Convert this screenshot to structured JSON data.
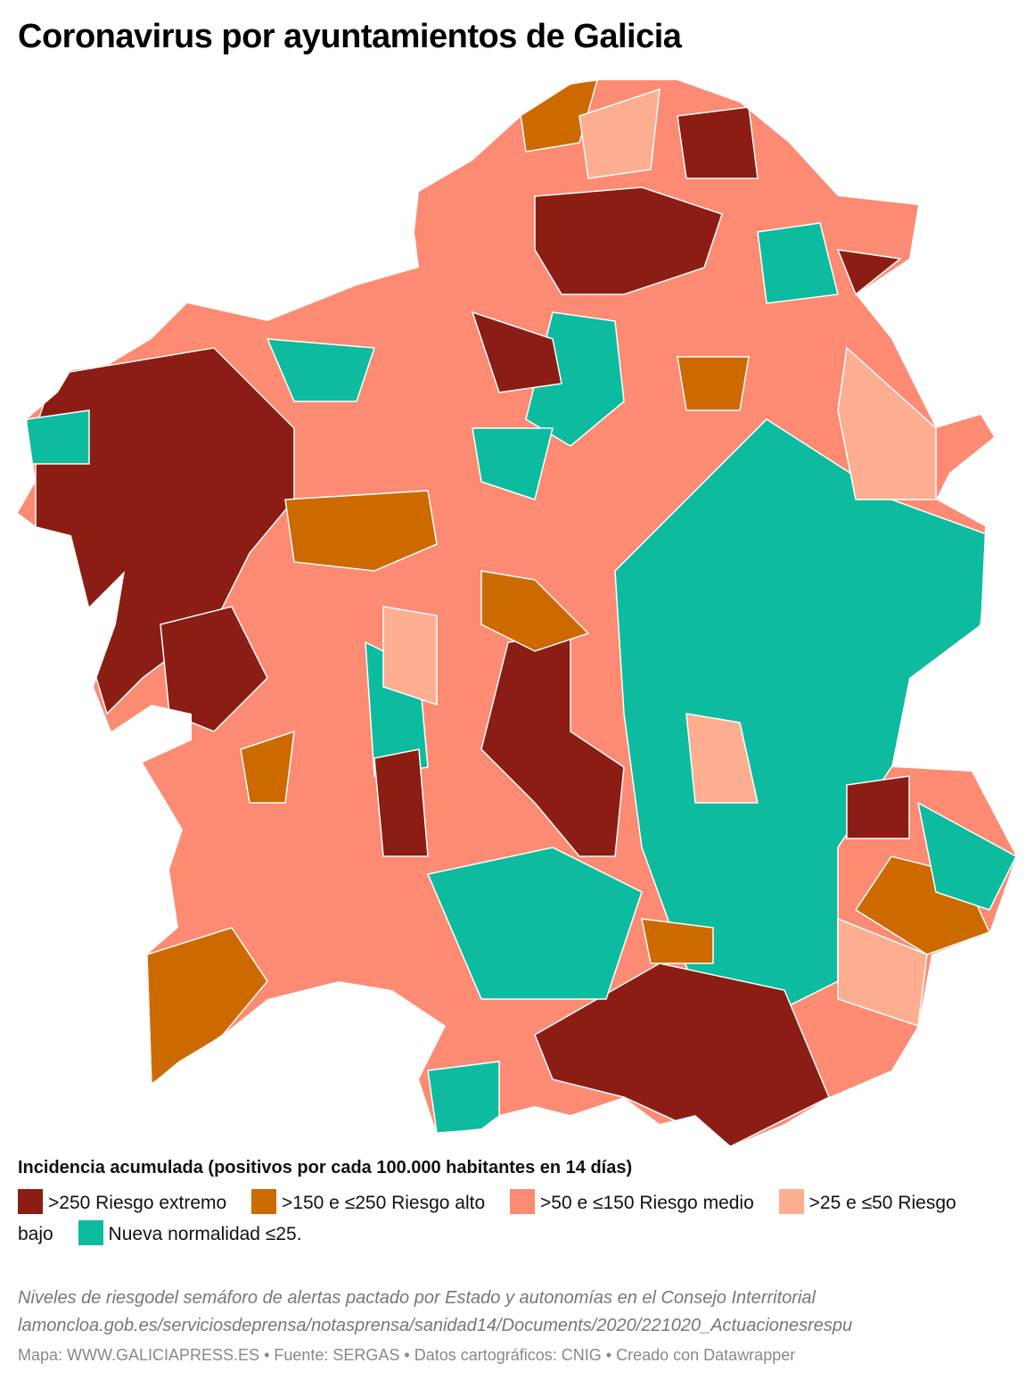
{
  "title": "Coronavirus por ayuntamientos de Galicia",
  "legend": {
    "title": "Incidencia acumulada (positivos por cada 100.000 habitantes en 14 días)",
    "items": [
      {
        "label": ">250 Riesgo extremo",
        "color": "#8b1d14"
      },
      {
        "label": ">150 e ≤250 Riesgo alto",
        "color": "#cc6a00"
      },
      {
        "label": ">50 e ≤150 Riesgo medio",
        "color": "#fd8a72"
      },
      {
        "label": ">25 e ≤50 Riesgo bajo",
        "color": "#fdae91"
      },
      {
        "label": "Nueva normalidad ≤25.",
        "color": "#0dbb9f"
      }
    ]
  },
  "notes": [
    "Niveles de riesgodel semáforo de alertas pactado por Estado y autonomías en el Consejo Interritorial",
    "lamoncloa.gob.es/serviciosdeprensa/notasprensa/sanidad14/Documents/2020/221020_Actuacionesrespu"
  ],
  "footer": "Mapa: WWW.GALICIAPRESS.ES • Fuente: SERGAS • Datos cartográficos: CNIG • Creado con Datawrapper"
}
